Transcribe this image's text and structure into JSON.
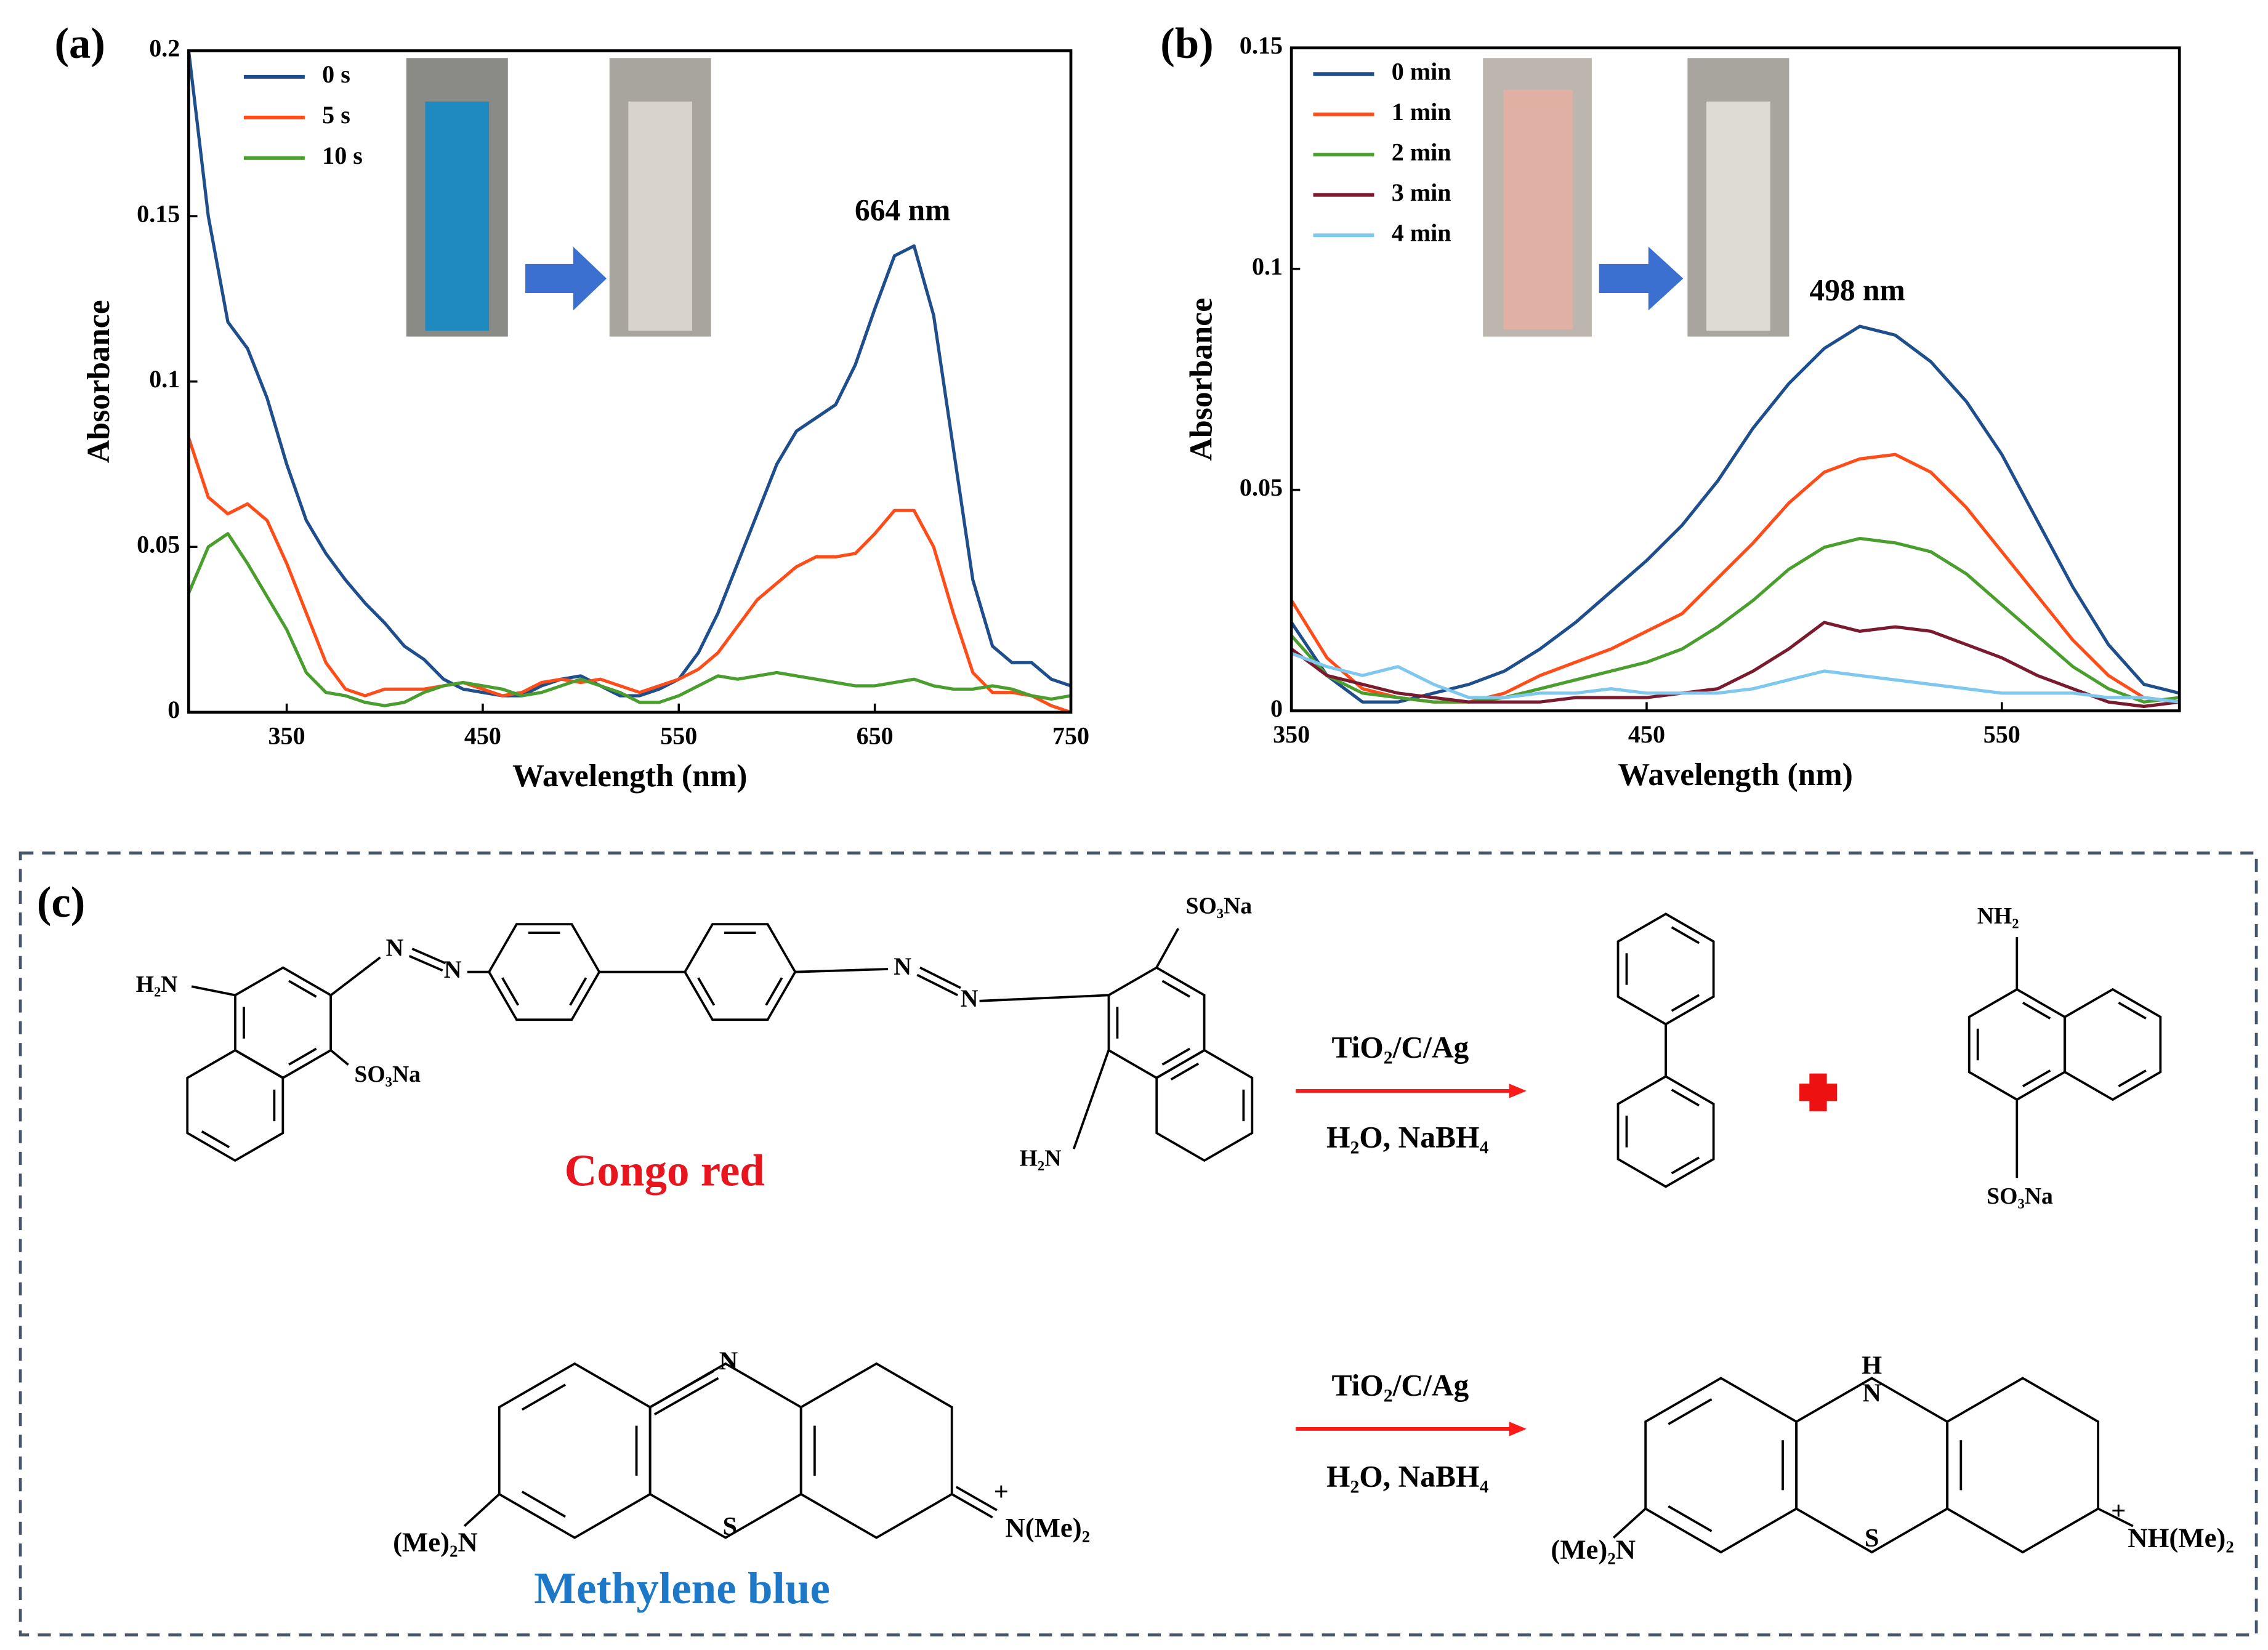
{
  "chart_data": [
    {
      "type": "line",
      "panel_label": "(a)",
      "xlabel": "Wavelength (nm)",
      "ylabel": "Absorbance",
      "annotation": "664 nm",
      "xlim": [
        300,
        750
      ],
      "ylim": [
        0,
        0.2
      ],
      "xticks": [
        350,
        450,
        550,
        650,
        750
      ],
      "yticks": [
        0,
        0.05,
        0.1,
        0.15,
        0.2
      ],
      "legend": "upper left",
      "x": [
        300,
        310,
        320,
        330,
        340,
        350,
        360,
        370,
        380,
        390,
        400,
        410,
        420,
        430,
        440,
        450,
        460,
        470,
        480,
        490,
        500,
        510,
        520,
        530,
        540,
        550,
        560,
        570,
        580,
        590,
        600,
        610,
        620,
        630,
        640,
        650,
        660,
        670,
        680,
        690,
        700,
        710,
        720,
        730,
        740,
        750
      ],
      "series": [
        {
          "name": "0 s",
          "color": "#1f4e8c",
          "values": [
            0.2,
            0.15,
            0.118,
            0.11,
            0.095,
            0.075,
            0.058,
            0.048,
            0.04,
            0.033,
            0.027,
            0.02,
            0.016,
            0.01,
            0.007,
            0.006,
            0.005,
            0.005,
            0.008,
            0.01,
            0.011,
            0.008,
            0.005,
            0.005,
            0.007,
            0.01,
            0.018,
            0.03,
            0.045,
            0.06,
            0.075,
            0.085,
            0.089,
            0.093,
            0.105,
            0.122,
            0.138,
            0.141,
            0.12,
            0.08,
            0.04,
            0.02,
            0.015,
            0.015,
            0.01,
            0.008
          ]
        },
        {
          "name": "5 s",
          "color": "#ff4d1a",
          "values": [
            0.083,
            0.065,
            0.06,
            0.063,
            0.058,
            0.045,
            0.03,
            0.015,
            0.007,
            0.005,
            0.007,
            0.007,
            0.007,
            0.008,
            0.009,
            0.007,
            0.005,
            0.006,
            0.009,
            0.01,
            0.009,
            0.01,
            0.008,
            0.006,
            0.008,
            0.01,
            0.013,
            0.018,
            0.026,
            0.034,
            0.039,
            0.044,
            0.047,
            0.047,
            0.048,
            0.054,
            0.061,
            0.061,
            0.05,
            0.03,
            0.012,
            0.006,
            0.006,
            0.005,
            0.002,
            0
          ]
        },
        {
          "name": "10 s",
          "color": "#4a9e2e",
          "values": [
            0.036,
            0.05,
            0.054,
            0.045,
            0.035,
            0.025,
            0.012,
            0.006,
            0.005,
            0.003,
            0.002,
            0.003,
            0.006,
            0.008,
            0.009,
            0.008,
            0.007,
            0.005,
            0.006,
            0.008,
            0.01,
            0.008,
            0.006,
            0.003,
            0.003,
            0.005,
            0.008,
            0.011,
            0.01,
            0.011,
            0.012,
            0.011,
            0.01,
            0.009,
            0.008,
            0.008,
            0.009,
            0.01,
            0.008,
            0.007,
            0.007,
            0.008,
            0.007,
            0.005,
            0.004,
            0.005
          ]
        }
      ]
    },
    {
      "type": "line",
      "panel_label": "(b)",
      "xlabel": "Wavelength (nm)",
      "ylabel": "Absorbance",
      "annotation": "498 nm",
      "xlim": [
        350,
        600
      ],
      "ylim": [
        0,
        0.15
      ],
      "xticks": [
        350,
        450,
        550
      ],
      "yticks": [
        0,
        0.05,
        0.1,
        0.15
      ],
      "legend": "upper left",
      "x": [
        350,
        360,
        370,
        380,
        390,
        400,
        410,
        420,
        430,
        440,
        450,
        460,
        470,
        480,
        490,
        500,
        510,
        520,
        530,
        540,
        550,
        560,
        570,
        580,
        590,
        600
      ],
      "series": [
        {
          "name": "0 min",
          "color": "#1f4e8c",
          "values": [
            0.02,
            0.008,
            0.002,
            0.002,
            0.004,
            0.006,
            0.009,
            0.014,
            0.02,
            0.027,
            0.034,
            0.042,
            0.052,
            0.064,
            0.074,
            0.082,
            0.087,
            0.085,
            0.079,
            0.07,
            0.058,
            0.043,
            0.028,
            0.015,
            0.006,
            0.004
          ]
        },
        {
          "name": "1 min",
          "color": "#ff4d1a",
          "values": [
            0.025,
            0.012,
            0.005,
            0.003,
            0.002,
            0.002,
            0.004,
            0.008,
            0.011,
            0.014,
            0.018,
            0.022,
            0.03,
            0.038,
            0.047,
            0.054,
            0.057,
            0.058,
            0.054,
            0.046,
            0.036,
            0.026,
            0.016,
            0.008,
            0.003,
            0.002
          ]
        },
        {
          "name": "2 min",
          "color": "#4a9e2e",
          "values": [
            0.017,
            0.008,
            0.004,
            0.003,
            0.002,
            0.002,
            0.003,
            0.005,
            0.007,
            0.009,
            0.011,
            0.014,
            0.019,
            0.025,
            0.032,
            0.037,
            0.039,
            0.038,
            0.036,
            0.031,
            0.024,
            0.017,
            0.01,
            0.005,
            0.002,
            0.003
          ]
        },
        {
          "name": "3 min",
          "color": "#7a1a2e",
          "values": [
            0.014,
            0.008,
            0.006,
            0.004,
            0.003,
            0.002,
            0.002,
            0.002,
            0.003,
            0.003,
            0.003,
            0.004,
            0.005,
            0.009,
            0.014,
            0.02,
            0.018,
            0.019,
            0.018,
            0.015,
            0.012,
            0.008,
            0.005,
            0.002,
            0.001,
            0.002
          ]
        },
        {
          "name": "4 min",
          "color": "#7ec8f0",
          "values": [
            0.013,
            0.01,
            0.008,
            0.01,
            0.006,
            0.003,
            0.003,
            0.004,
            0.004,
            0.005,
            0.004,
            0.004,
            0.004,
            0.005,
            0.007,
            0.009,
            0.008,
            0.007,
            0.006,
            0.005,
            0.004,
            0.004,
            0.004,
            0.003,
            0.003,
            0.002
          ]
        }
      ]
    }
  ],
  "diagram": {
    "labels": [
      "(c)",
      "H₂N",
      "SO₃Na",
      "N",
      "N",
      "SO₃Na",
      "N",
      "N",
      "H₂N",
      "Congo red",
      "TiO₂/C/Ag",
      "H₂O, NaBH₄",
      "NH₂",
      "SO₃Na",
      "N",
      "S",
      "(Me)₂N",
      "+",
      "N(Me)₂",
      "Methylene blue",
      "TiO₂/C/Ag",
      "H₂O, NaBH₄",
      "H",
      "N",
      "S",
      "(Me)₂N",
      "+",
      "NH(Me)₂"
    ]
  }
}
